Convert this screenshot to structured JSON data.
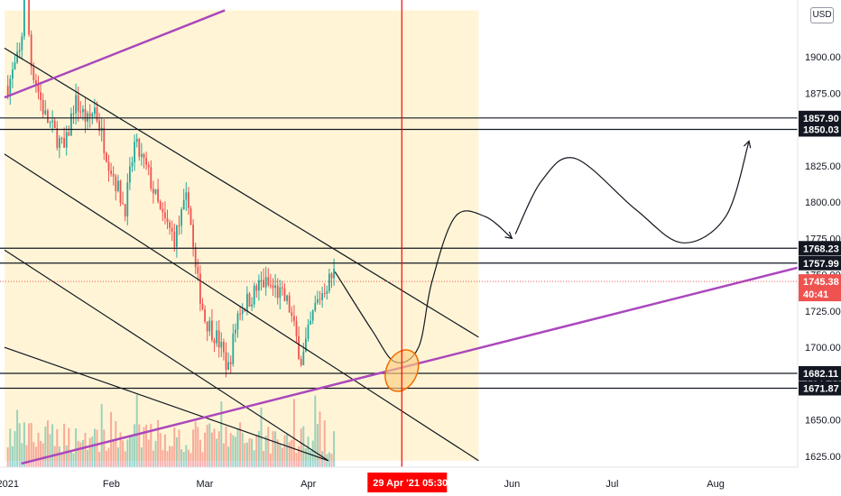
{
  "currency": "USD",
  "crosshair": {
    "date_label": "29 Apr '21",
    "time_label": "05:30"
  },
  "price_tag": {
    "value": "1745.38",
    "countdown": "40:41",
    "color": "#ef5350"
  },
  "colors": {
    "up": "#26a69a",
    "down": "#ef5350",
    "channel": "#131722",
    "trendline": "#ab47bc",
    "crosshair": "#ff0000",
    "highlight": "#fff5d6",
    "ellipse_fill": "#ffcc80",
    "ellipse_stroke": "#ef6c00"
  },
  "chart_data": {
    "type": "candlestick",
    "instrument_currency": "USD",
    "x_tick_labels": [
      "2021",
      "Feb",
      "Mar",
      "Apr",
      "Jun",
      "Jul",
      "Aug"
    ],
    "y_tick_labels": [
      "1900.00",
      "1875.00",
      "1850.00",
      "1825.00",
      "1800.00",
      "1775.00",
      "1750.00",
      "1725.00",
      "1700.00",
      "1675.00",
      "1650.00",
      "1625.00"
    ],
    "y_ticks": [
      1900,
      1875,
      1850,
      1825,
      1800,
      1775,
      1750,
      1725,
      1700,
      1675,
      1650,
      1625
    ],
    "ylim": [
      1620,
      1932
    ],
    "horizontal_levels": [
      {
        "label": "1857.90",
        "value": 1857.9
      },
      {
        "label": "1850.03",
        "value": 1850.03
      },
      {
        "label": "1768.23",
        "value": 1768.23
      },
      {
        "label": "1757.99",
        "value": 1757.99
      },
      {
        "label": "1682.11",
        "value": 1682.11
      },
      {
        "label": "1671.87",
        "value": 1671.87
      }
    ],
    "current_price": 1745.38,
    "price_path": [
      {
        "date": "2021-01-01",
        "price": 1880
      },
      {
        "date": "2021-01-05",
        "price": 1905
      },
      {
        "date": "2021-01-06",
        "price": 1955
      },
      {
        "date": "2021-01-08",
        "price": 1895
      },
      {
        "date": "2021-01-12",
        "price": 1860
      },
      {
        "date": "2021-01-18",
        "price": 1835
      },
      {
        "date": "2021-01-21",
        "price": 1870
      },
      {
        "date": "2021-01-25",
        "price": 1855
      },
      {
        "date": "2021-01-27",
        "price": 1865
      },
      {
        "date": "2021-01-31",
        "price": 1830
      },
      {
        "date": "2021-02-05",
        "price": 1795
      },
      {
        "date": "2021-02-08",
        "price": 1840
      },
      {
        "date": "2021-02-12",
        "price": 1820
      },
      {
        "date": "2021-02-16",
        "price": 1790
      },
      {
        "date": "2021-02-20",
        "price": 1775
      },
      {
        "date": "2021-02-24",
        "price": 1805
      },
      {
        "date": "2021-02-26",
        "price": 1755
      },
      {
        "date": "2021-03-01",
        "price": 1720
      },
      {
        "date": "2021-03-05",
        "price": 1705
      },
      {
        "date": "2021-03-08",
        "price": 1685
      },
      {
        "date": "2021-03-11",
        "price": 1725
      },
      {
        "date": "2021-03-15",
        "price": 1735
      },
      {
        "date": "2021-03-18",
        "price": 1745
      },
      {
        "date": "2021-03-22",
        "price": 1740
      },
      {
        "date": "2021-03-26",
        "price": 1730
      },
      {
        "date": "2021-03-30",
        "price": 1690
      },
      {
        "date": "2021-03-31",
        "price": 1700
      },
      {
        "date": "2021-04-03",
        "price": 1728
      },
      {
        "date": "2021-04-06",
        "price": 1742
      },
      {
        "date": "2021-04-09",
        "price": 1752
      }
    ],
    "drawings": {
      "channel_lines": [
        {
          "start": [
            "2020-12-31",
            1906
          ],
          "end": [
            "2021-05-22",
            1707
          ]
        },
        {
          "start": [
            "2020-12-31",
            1833
          ],
          "end": [
            "2021-05-22",
            1622
          ]
        },
        {
          "start": [
            "2020-12-31",
            1767
          ],
          "end": [
            "2021-04-07",
            1622
          ]
        },
        {
          "start": [
            "2020-12-31",
            1700
          ],
          "end": [
            "2021-04-07",
            1622
          ]
        }
      ],
      "trendlines": [
        {
          "start": [
            "2020-12-31",
            1872
          ],
          "end": [
            "2021-03-07",
            1932
          ]
        },
        {
          "start": [
            "2021-01-05",
            1620
          ],
          "end": [
            "2021-08-31",
            1758
          ]
        }
      ],
      "projection_path": [
        [
          "2021-04-09",
          1752
        ],
        [
          "2021-04-20",
          1712
        ],
        [
          "2021-04-27",
          1690
        ],
        [
          "2021-05-04",
          1700
        ],
        [
          "2021-05-08",
          1745
        ],
        [
          "2021-05-15",
          1790
        ],
        [
          "2021-05-24",
          1790
        ],
        [
          "2021-06-01",
          1775
        ]
      ],
      "projection_path_2": [
        [
          "2021-06-02",
          1778
        ],
        [
          "2021-06-10",
          1815
        ],
        [
          "2021-06-20",
          1830
        ],
        [
          "2021-07-08",
          1795
        ],
        [
          "2021-07-22",
          1772
        ],
        [
          "2021-08-04",
          1790
        ],
        [
          "2021-08-11",
          1842
        ]
      ],
      "ellipse_center": [
        "2021-04-29",
        1684
      ],
      "vertical_marker_date": "2021-04-29",
      "highlight_zone": {
        "from": "2020-12-31",
        "to": "2021-05-22",
        "price_low": 1622,
        "price_high": 1932
      }
    },
    "grid": false,
    "legend": "none"
  }
}
